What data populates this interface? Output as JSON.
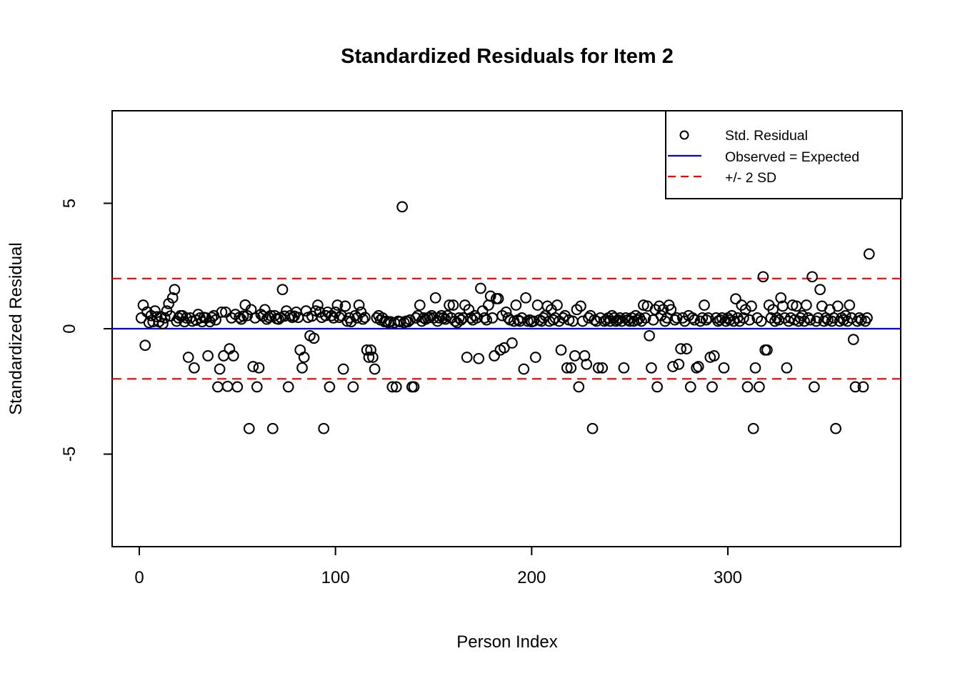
{
  "chart_data": {
    "type": "scatter",
    "title": "Standardized Residuals for Item 2",
    "xlabel": "Person Index",
    "ylabel": "Standardized Residual",
    "x_ticks": [
      0,
      100,
      200,
      300
    ],
    "y_ticks": [
      -5,
      0,
      5
    ],
    "xlim": [
      -14,
      387
    ],
    "ylim": [
      -8.7,
      8.7
    ],
    "grid": false,
    "legend_position": "top-right",
    "legend": [
      {
        "label": "Std. Residual",
        "type": "point",
        "color": "#000000"
      },
      {
        "label": "Observed = Expected",
        "type": "solid-line",
        "color": "#0000ff"
      },
      {
        "label": "+/- 2 SD",
        "type": "dashed-line",
        "color": "#ff0000"
      }
    ],
    "reference_lines": [
      {
        "y": 0,
        "color": "#0000ff",
        "style": "solid"
      },
      {
        "y": 2,
        "color": "#ff0000",
        "style": "dashed"
      },
      {
        "y": -2,
        "color": "#ff0000",
        "style": "dashed"
      }
    ],
    "colors": {
      "point": "#000000",
      "zero_line": "#0000ff",
      "sd_line": "#ff0000",
      "axis": "#000000"
    },
    "points": [
      [
        1,
        0.43
      ],
      [
        2,
        0.94
      ],
      [
        3,
        -0.66
      ],
      [
        4,
        0.67
      ],
      [
        5,
        0.24
      ],
      [
        6,
        0.52
      ],
      [
        7,
        0.28
      ],
      [
        8,
        0.71
      ],
      [
        9,
        0.48
      ],
      [
        10,
        0.28
      ],
      [
        11,
        0.48
      ],
      [
        12,
        0.2
      ],
      [
        13,
        0.43
      ],
      [
        14,
        0.71
      ],
      [
        15,
        1.0
      ],
      [
        16,
        0.51
      ],
      [
        17,
        1.23
      ],
      [
        18,
        1.56
      ],
      [
        19,
        0.3
      ],
      [
        20,
        0.43
      ],
      [
        21,
        0.52
      ],
      [
        22,
        0.52
      ],
      [
        23,
        0.28
      ],
      [
        24,
        0.43
      ],
      [
        25,
        -1.14
      ],
      [
        26,
        0.43
      ],
      [
        27,
        0.3
      ],
      [
        28,
        -1.56
      ],
      [
        29,
        0.34
      ],
      [
        30,
        0.57
      ],
      [
        31,
        0.43
      ],
      [
        32,
        0.28
      ],
      [
        33,
        0.45
      ],
      [
        34,
        0.43
      ],
      [
        35,
        -1.08
      ],
      [
        36,
        0.28
      ],
      [
        37,
        0.45
      ],
      [
        38,
        0.52
      ],
      [
        39,
        0.35
      ],
      [
        40,
        -2.32
      ],
      [
        41,
        -1.61
      ],
      [
        42,
        0.66
      ],
      [
        43,
        -1.08
      ],
      [
        44,
        0.66
      ],
      [
        45,
        -2.3
      ],
      [
        46,
        -0.8
      ],
      [
        47,
        0.43
      ],
      [
        48,
        -1.08
      ],
      [
        49,
        0.57
      ],
      [
        50,
        -2.32
      ],
      [
        51,
        0.45
      ],
      [
        52,
        0.38
      ],
      [
        53,
        0.5
      ],
      [
        54,
        0.95
      ],
      [
        55,
        0.52
      ],
      [
        56,
        -3.98
      ],
      [
        57,
        0.76
      ],
      [
        58,
        -1.51
      ],
      [
        59,
        0.43
      ],
      [
        60,
        -2.32
      ],
      [
        61,
        -1.56
      ],
      [
        62,
        0.57
      ],
      [
        63,
        0.5
      ],
      [
        64,
        0.76
      ],
      [
        65,
        0.38
      ],
      [
        66,
        0.45
      ],
      [
        67,
        0.52
      ],
      [
        68,
        -3.98
      ],
      [
        69,
        0.52
      ],
      [
        70,
        0.4
      ],
      [
        71,
        0.38
      ],
      [
        72,
        0.45
      ],
      [
        73,
        1.56
      ],
      [
        74,
        0.5
      ],
      [
        75,
        0.71
      ],
      [
        76,
        -2.32
      ],
      [
        77,
        0.52
      ],
      [
        78,
        0.45
      ],
      [
        79,
        0.5
      ],
      [
        80,
        0.66
      ],
      [
        81,
        0.45
      ],
      [
        82,
        -0.85
      ],
      [
        83,
        -1.56
      ],
      [
        84,
        -1.14
      ],
      [
        85,
        0.71
      ],
      [
        86,
        0.45
      ],
      [
        87,
        -0.28
      ],
      [
        88,
        0.5
      ],
      [
        89,
        -0.38
      ],
      [
        90,
        0.71
      ],
      [
        91,
        0.94
      ],
      [
        92,
        0.66
      ],
      [
        93,
        0.45
      ],
      [
        94,
        -3.98
      ],
      [
        95,
        0.52
      ],
      [
        96,
        0.66
      ],
      [
        97,
        -2.32
      ],
      [
        98,
        0.52
      ],
      [
        99,
        0.43
      ],
      [
        100,
        0.66
      ],
      [
        101,
        0.94
      ],
      [
        102,
        0.45
      ],
      [
        103,
        0.52
      ],
      [
        104,
        -1.61
      ],
      [
        105,
        0.9
      ],
      [
        106,
        0.3
      ],
      [
        107,
        0.43
      ],
      [
        108,
        0.28
      ],
      [
        109,
        -2.32
      ],
      [
        110,
        0.52
      ],
      [
        111,
        0.43
      ],
      [
        112,
        0.94
      ],
      [
        113,
        0.66
      ],
      [
        114,
        0.38
      ],
      [
        115,
        0.45
      ],
      [
        116,
        -0.85
      ],
      [
        117,
        -1.14
      ],
      [
        118,
        -0.85
      ],
      [
        119,
        -1.14
      ],
      [
        120,
        -1.61
      ],
      [
        121,
        0.43
      ],
      [
        122,
        0.52
      ],
      [
        123,
        0.35
      ],
      [
        124,
        0.43
      ],
      [
        125,
        0.28
      ],
      [
        126,
        0.3
      ],
      [
        127,
        0.24
      ],
      [
        128,
        0.28
      ],
      [
        129,
        -2.32
      ],
      [
        130,
        0.24
      ],
      [
        131,
        -2.32
      ],
      [
        132,
        0.3
      ],
      [
        133,
        0.28
      ],
      [
        134,
        4.86
      ],
      [
        135,
        0.24
      ],
      [
        136,
        0.3
      ],
      [
        137,
        0.28
      ],
      [
        138,
        0.35
      ],
      [
        139,
        -2.32
      ],
      [
        140,
        -2.32
      ],
      [
        141,
        0.43
      ],
      [
        142,
        0.52
      ],
      [
        143,
        0.94
      ],
      [
        144,
        0.3
      ],
      [
        145,
        0.43
      ],
      [
        146,
        0.38
      ],
      [
        147,
        0.43
      ],
      [
        148,
        0.45
      ],
      [
        149,
        0.52
      ],
      [
        150,
        0.43
      ],
      [
        151,
        1.23
      ],
      [
        152,
        0.3
      ],
      [
        153,
        0.43
      ],
      [
        154,
        0.52
      ],
      [
        155,
        0.43
      ],
      [
        156,
        0.38
      ],
      [
        157,
        0.52
      ],
      [
        158,
        0.94
      ],
      [
        159,
        0.43
      ],
      [
        160,
        0.94
      ],
      [
        161,
        0.3
      ],
      [
        162,
        0.24
      ],
      [
        163,
        0.43
      ],
      [
        164,
        0.35
      ],
      [
        165,
        0.43
      ],
      [
        166,
        0.94
      ],
      [
        167,
        -1.14
      ],
      [
        168,
        0.76
      ],
      [
        169,
        0.43
      ],
      [
        170,
        0.35
      ],
      [
        171,
        0.52
      ],
      [
        172,
        0.43
      ],
      [
        173,
        -1.19
      ],
      [
        174,
        1.61
      ],
      [
        175,
        0.71
      ],
      [
        176,
        0.43
      ],
      [
        177,
        0.35
      ],
      [
        178,
        0.94
      ],
      [
        179,
        1.3
      ],
      [
        180,
        0.43
      ],
      [
        181,
        -1.08
      ],
      [
        182,
        1.2
      ],
      [
        183,
        1.2
      ],
      [
        184,
        -0.85
      ],
      [
        185,
        0.52
      ],
      [
        186,
        -0.76
      ],
      [
        187,
        0.66
      ],
      [
        188,
        0.43
      ],
      [
        189,
        0.35
      ],
      [
        190,
        -0.57
      ],
      [
        191,
        0.3
      ],
      [
        192,
        0.94
      ],
      [
        193,
        0.35
      ],
      [
        194,
        0.3
      ],
      [
        195,
        0.43
      ],
      [
        196,
        -1.61
      ],
      [
        197,
        1.23
      ],
      [
        198,
        0.3
      ],
      [
        199,
        0.35
      ],
      [
        200,
        0.28
      ],
      [
        201,
        0.3
      ],
      [
        202,
        -1.14
      ],
      [
        203,
        0.94
      ],
      [
        204,
        0.35
      ],
      [
        205,
        0.3
      ],
      [
        206,
        0.43
      ],
      [
        207,
        0.52
      ],
      [
        208,
        0.9
      ],
      [
        209,
        0.3
      ],
      [
        210,
        0.76
      ],
      [
        211,
        0.35
      ],
      [
        212,
        0.43
      ],
      [
        213,
        0.94
      ],
      [
        214,
        0.3
      ],
      [
        215,
        -0.85
      ],
      [
        216,
        0.43
      ],
      [
        217,
        0.52
      ],
      [
        218,
        -1.56
      ],
      [
        219,
        0.35
      ],
      [
        220,
        -1.56
      ],
      [
        221,
        0.3
      ],
      [
        222,
        -1.08
      ],
      [
        223,
        0.76
      ],
      [
        224,
        -2.32
      ],
      [
        225,
        0.9
      ],
      [
        226,
        0.3
      ],
      [
        227,
        -1.08
      ],
      [
        228,
        -1.42
      ],
      [
        229,
        0.43
      ],
      [
        230,
        0.52
      ],
      [
        231,
        -3.98
      ],
      [
        232,
        0.35
      ],
      [
        233,
        0.3
      ],
      [
        234,
        -1.56
      ],
      [
        235,
        0.43
      ],
      [
        236,
        -1.56
      ],
      [
        237,
        0.3
      ],
      [
        238,
        0.35
      ],
      [
        239,
        0.43
      ],
      [
        240,
        0.3
      ],
      [
        241,
        0.52
      ],
      [
        242,
        0.43
      ],
      [
        243,
        0.3
      ],
      [
        244,
        0.35
      ],
      [
        245,
        0.43
      ],
      [
        246,
        0.3
      ],
      [
        247,
        -1.56
      ],
      [
        248,
        0.43
      ],
      [
        249,
        0.35
      ],
      [
        250,
        0.3
      ],
      [
        251,
        0.43
      ],
      [
        252,
        0.3
      ],
      [
        253,
        0.52
      ],
      [
        254,
        0.35
      ],
      [
        255,
        0.43
      ],
      [
        256,
        0.3
      ],
      [
        257,
        0.94
      ],
      [
        258,
        0.43
      ],
      [
        259,
        0.9
      ],
      [
        260,
        -0.28
      ],
      [
        261,
        -1.56
      ],
      [
        262,
        0.35
      ],
      [
        263,
        0.76
      ],
      [
        264,
        -2.32
      ],
      [
        265,
        0.9
      ],
      [
        266,
        0.52
      ],
      [
        267,
        0.76
      ],
      [
        268,
        0.3
      ],
      [
        269,
        0.43
      ],
      [
        270,
        0.94
      ],
      [
        271,
        0.76
      ],
      [
        272,
        -1.51
      ],
      [
        273,
        0.35
      ],
      [
        274,
        0.43
      ],
      [
        275,
        -1.42
      ],
      [
        276,
        -0.8
      ],
      [
        277,
        0.43
      ],
      [
        278,
        0.3
      ],
      [
        279,
        -0.8
      ],
      [
        280,
        0.52
      ],
      [
        281,
        -2.32
      ],
      [
        282,
        0.43
      ],
      [
        283,
        0.35
      ],
      [
        284,
        -1.56
      ],
      [
        285,
        -1.51
      ],
      [
        286,
        0.3
      ],
      [
        287,
        0.43
      ],
      [
        288,
        0.94
      ],
      [
        289,
        0.35
      ],
      [
        290,
        0.43
      ],
      [
        291,
        -1.14
      ],
      [
        292,
        -2.32
      ],
      [
        293,
        -1.08
      ],
      [
        294,
        0.43
      ],
      [
        295,
        0.3
      ],
      [
        296,
        0.35
      ],
      [
        297,
        0.43
      ],
      [
        298,
        -1.56
      ],
      [
        299,
        0.3
      ],
      [
        300,
        0.43
      ],
      [
        301,
        0.35
      ],
      [
        302,
        0.52
      ],
      [
        303,
        0.3
      ],
      [
        304,
        1.19
      ],
      [
        305,
        0.43
      ],
      [
        306,
        0.3
      ],
      [
        307,
        0.94
      ],
      [
        308,
        0.43
      ],
      [
        309,
        0.76
      ],
      [
        310,
        -2.32
      ],
      [
        311,
        0.35
      ],
      [
        312,
        0.9
      ],
      [
        313,
        -3.98
      ],
      [
        314,
        -1.56
      ],
      [
        315,
        0.43
      ],
      [
        316,
        -2.32
      ],
      [
        317,
        0.3
      ],
      [
        318,
        2.07
      ],
      [
        319,
        -0.85
      ],
      [
        320,
        -0.85
      ],
      [
        321,
        0.94
      ],
      [
        322,
        0.43
      ],
      [
        323,
        0.76
      ],
      [
        324,
        0.3
      ],
      [
        325,
        0.43
      ],
      [
        326,
        0.35
      ],
      [
        327,
        1.23
      ],
      [
        328,
        0.9
      ],
      [
        329,
        0.43
      ],
      [
        330,
        -1.56
      ],
      [
        331,
        0.3
      ],
      [
        332,
        0.43
      ],
      [
        333,
        0.94
      ],
      [
        334,
        0.35
      ],
      [
        335,
        0.9
      ],
      [
        336,
        0.3
      ],
      [
        337,
        0.43
      ],
      [
        338,
        0.52
      ],
      [
        339,
        0.3
      ],
      [
        340,
        0.94
      ],
      [
        341,
        0.43
      ],
      [
        342,
        0.35
      ],
      [
        343,
        2.07
      ],
      [
        344,
        -2.32
      ],
      [
        345,
        0.3
      ],
      [
        346,
        0.43
      ],
      [
        347,
        1.56
      ],
      [
        348,
        0.9
      ],
      [
        349,
        0.3
      ],
      [
        350,
        0.43
      ],
      [
        351,
        0.35
      ],
      [
        352,
        0.76
      ],
      [
        353,
        0.3
      ],
      [
        354,
        0.43
      ],
      [
        355,
        -3.98
      ],
      [
        356,
        0.9
      ],
      [
        357,
        0.3
      ],
      [
        358,
        0.43
      ],
      [
        359,
        0.35
      ],
      [
        360,
        0.52
      ],
      [
        361,
        0.3
      ],
      [
        362,
        0.94
      ],
      [
        363,
        0.43
      ],
      [
        364,
        -0.43
      ],
      [
        365,
        -2.32
      ],
      [
        366,
        0.3
      ],
      [
        367,
        0.43
      ],
      [
        368,
        0.35
      ],
      [
        369,
        -2.32
      ],
      [
        370,
        0.3
      ],
      [
        371,
        0.43
      ],
      [
        372,
        2.98
      ]
    ]
  }
}
